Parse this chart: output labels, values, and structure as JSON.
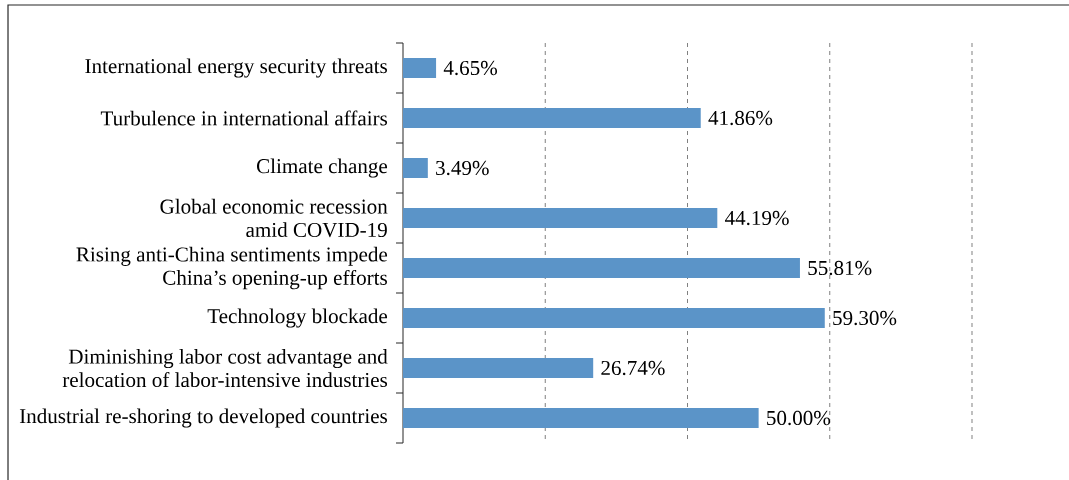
{
  "chart_data": {
    "type": "bar",
    "orientation": "horizontal",
    "categories": [
      "International energy security threats",
      "Turbulence in international affairs",
      "Climate change",
      "Global economic recession\namid COVID-19",
      "Rising anti-China sentiments impede\nChina’s opening-up efforts",
      "Technology blockade",
      "Diminishing labor cost advantage and\nrelocation of labor-intensive industries",
      "Industrial re-shoring to developed countries"
    ],
    "values": [
      4.65,
      41.86,
      3.49,
      44.19,
      55.81,
      59.3,
      26.74,
      50.0
    ],
    "value_labels": [
      "4.65%",
      "41.86%",
      "3.49%",
      "44.19%",
      "55.81%",
      "59.30%",
      "26.74%",
      "50.00%"
    ],
    "color": "#5b94c8",
    "xlim": [
      0,
      80
    ],
    "xticks": [
      20,
      40,
      60,
      80
    ],
    "grid": "x",
    "tick_labels": "y"
  }
}
